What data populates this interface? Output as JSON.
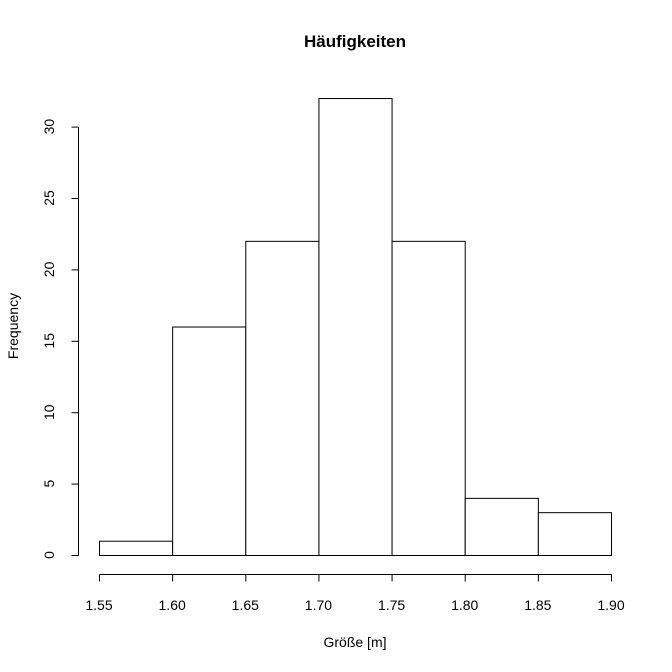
{
  "chart_data": {
    "type": "bar",
    "title": "Häufigkeiten",
    "xlabel": "Größe [m]",
    "ylabel": "Frequency",
    "bins": [
      {
        "from": 1.55,
        "to": 1.6,
        "count": 1
      },
      {
        "from": 1.6,
        "to": 1.65,
        "count": 16
      },
      {
        "from": 1.65,
        "to": 1.7,
        "count": 22
      },
      {
        "from": 1.7,
        "to": 1.75,
        "count": 32
      },
      {
        "from": 1.75,
        "to": 1.8,
        "count": 22
      },
      {
        "from": 1.8,
        "to": 1.85,
        "count": 4
      },
      {
        "from": 1.85,
        "to": 1.9,
        "count": 3
      }
    ],
    "xlim": [
      1.55,
      1.9
    ],
    "ylim": [
      0,
      32
    ],
    "x_ticks": [
      "1.55",
      "1.60",
      "1.65",
      "1.70",
      "1.75",
      "1.80",
      "1.85",
      "1.90"
    ],
    "y_ticks": [
      "0",
      "5",
      "10",
      "15",
      "20",
      "25",
      "30"
    ],
    "grid": false,
    "bar_fill": "#ffffff",
    "bar_stroke": "#000000"
  }
}
